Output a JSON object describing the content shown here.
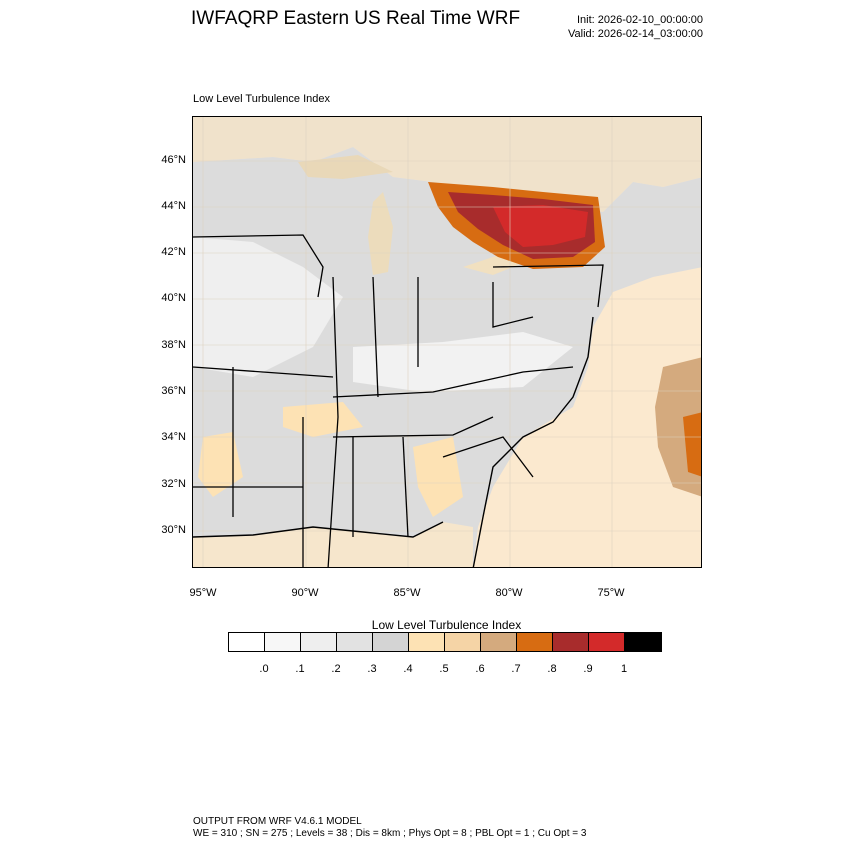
{
  "header": {
    "title": "IWFAQRP Eastern US Real Time WRF",
    "init": "Init: 2026-02-10_00:00:00",
    "valid": "Valid: 2026-02-14_03:00:00"
  },
  "plot": {
    "subtitle": "Low Level Turbulence Index",
    "lat_ticks": [
      "46°N",
      "44°N",
      "42°N",
      "40°N",
      "38°N",
      "36°N",
      "34°N",
      "32°N",
      "30°N"
    ],
    "lon_ticks": [
      "95°W",
      "90°W",
      "85°W",
      "80°W",
      "75°W"
    ]
  },
  "colorbar": {
    "title": "Low Level Turbulence Index",
    "colors": [
      "#ffffff",
      "#f7f7f7",
      "#eeeeee",
      "#e2e2e2",
      "#d4d4d4",
      "#fde2b4",
      "#f5d4a6",
      "#d4aa7e",
      "#d76c12",
      "#a82c2c",
      "#d32a2a",
      "#000000"
    ],
    "labels": [
      ".0",
      ".1",
      ".2",
      ".3",
      ".4",
      ".5",
      ".6",
      ".7",
      ".8",
      ".9",
      "1"
    ]
  },
  "footer": {
    "line1": "OUTPUT FROM WRF V4.6.1 MODEL",
    "line2": "WE = 310 ; SN = 275 ; Levels = 38 ; Dis = 8km ; Phys Opt = 8 ; PBL Opt = 1 ; Cu Opt = 3"
  }
}
